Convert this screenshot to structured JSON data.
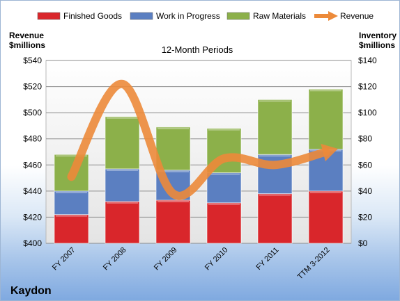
{
  "chart_data": {
    "type": "bar",
    "title": "12-Month Periods",
    "company": "Kaydon",
    "categories": [
      "FY 2007",
      "FY 2008",
      "FY 2009",
      "FY 2010",
      "FY 2011",
      "TTM 3-2012"
    ],
    "series": [
      {
        "name": "Finished Goods",
        "type": "bar",
        "axis": "right",
        "color": "#d9262b",
        "values": [
          22,
          32,
          33,
          31,
          38,
          40
        ]
      },
      {
        "name": "Work in Progress",
        "type": "bar",
        "axis": "right",
        "color": "#5b7fc1",
        "values": [
          18,
          25,
          23,
          23,
          30,
          32
        ]
      },
      {
        "name": "Raw Materials",
        "type": "bar",
        "axis": "right",
        "color": "#8cb04a",
        "values": [
          28,
          40,
          33,
          34,
          42,
          46
        ]
      },
      {
        "name": "Revenue",
        "type": "line",
        "axis": "left",
        "color": "#ec8a3a",
        "values": [
          451,
          522,
          438,
          465,
          460,
          470
        ]
      }
    ],
    "ylabel_left": "Revenue\n$millions",
    "ylabel_right": "Inventory\n$millions",
    "ylim_left": [
      400,
      540
    ],
    "ylim_right": [
      0,
      140
    ],
    "yticks_left": [
      "$400",
      "$420",
      "$440",
      "$460",
      "$480",
      "$500",
      "$520",
      "$540"
    ],
    "yticks_right": [
      "$0",
      "$20",
      "$40",
      "$60",
      "$80",
      "$100",
      "$120",
      "$140"
    ],
    "grid": true,
    "legend_position": "top"
  }
}
